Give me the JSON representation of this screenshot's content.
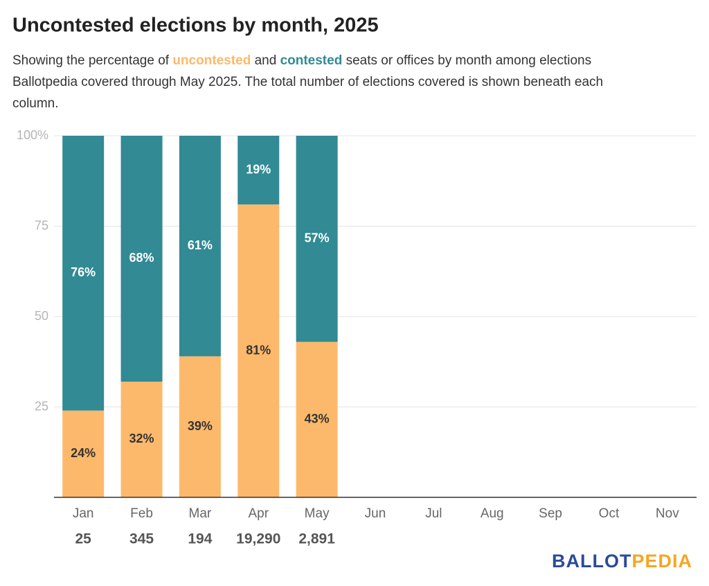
{
  "chart_data": {
    "type": "stacked_bar",
    "title": "Uncontested elections by month, 2025",
    "subtitle": [
      [
        "Showing the percentage of ",
        " and ",
        " seats or offices by month among elections"
      ],
      [
        "Ballotpedia covered through May 2025. The total number of elections covered is shown beneath each"
      ],
      [
        "column."
      ]
    ],
    "categories": [
      "Jan",
      "Feb",
      "Mar",
      "Apr",
      "May",
      "Jun",
      "Jul",
      "Aug",
      "Sep",
      "Oct",
      "Nov"
    ],
    "series": [
      {
        "name": "uncontested",
        "color": "#fdb96b",
        "label_color": "#333333",
        "values": [
          24,
          32,
          39,
          81,
          43,
          null,
          null,
          null,
          null,
          null,
          null
        ],
        "value_labels": [
          "24%",
          "32%",
          "39%",
          "81%",
          "43%",
          null,
          null,
          null,
          null,
          null,
          null
        ]
      },
      {
        "name": "contested",
        "color": "#318a94",
        "label_color": "#ffffff",
        "values": [
          76,
          68,
          61,
          19,
          57,
          null,
          null,
          null,
          null,
          null,
          null
        ],
        "value_labels": [
          "76%",
          "68%",
          "61%",
          "19%",
          "57%",
          null,
          null,
          null,
          null,
          null,
          null
        ]
      }
    ],
    "totals": {
      "values": [
        25,
        345,
        194,
        19290,
        2891
      ],
      "value_labels": [
        "25",
        "345",
        "194",
        "19,290",
        "2,891"
      ]
    },
    "ylim": [
      0,
      100
    ],
    "yticks": [
      25,
      50,
      75,
      {
        "value": 100,
        "label": "100%"
      }
    ],
    "grid": true,
    "logo": [
      "BALLOT",
      "PEDIA"
    ]
  }
}
